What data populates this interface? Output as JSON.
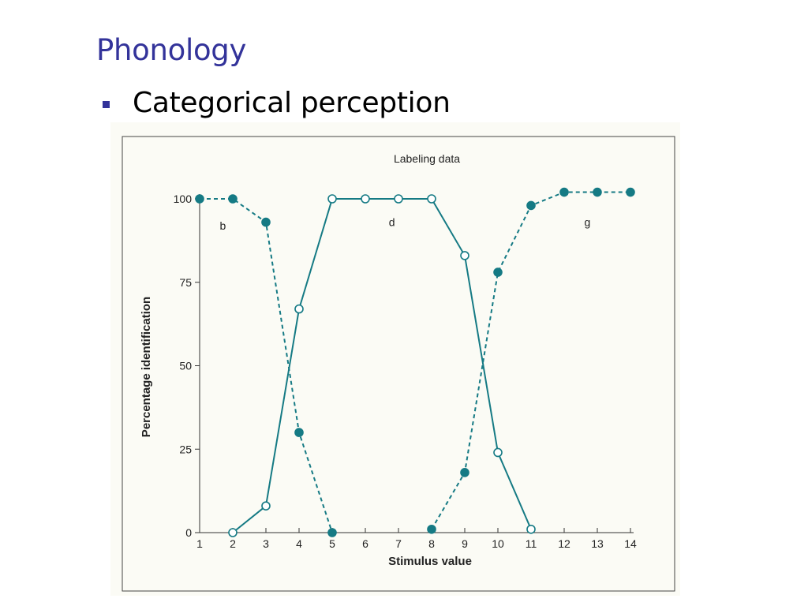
{
  "slide": {
    "title": "Phonology",
    "bullet": "Categorical perception"
  },
  "colors": {
    "accent": "#33339a",
    "series": "#157a84"
  },
  "chart_data": {
    "type": "line",
    "title": "Labeling data",
    "xlabel": "Stimulus value",
    "ylabel": "Percentage identification",
    "xlim": [
      1,
      14
    ],
    "ylim": [
      0,
      100
    ],
    "x_ticks": [
      1,
      2,
      3,
      4,
      5,
      6,
      7,
      8,
      9,
      10,
      11,
      12,
      13,
      14
    ],
    "y_ticks": [
      0,
      25,
      50,
      75,
      100
    ],
    "region_labels": [
      {
        "text": "b",
        "x": 1.7,
        "y": 92
      },
      {
        "text": "d",
        "x": 6.8,
        "y": 93
      },
      {
        "text": "g",
        "x": 12.7,
        "y": 93
      }
    ],
    "series": [
      {
        "style": "dashed",
        "marker": "filled",
        "points": [
          [
            1,
            100
          ],
          [
            2,
            100
          ],
          [
            3,
            93
          ],
          [
            4,
            30
          ],
          [
            5,
            0
          ]
        ]
      },
      {
        "style": "solid",
        "marker": "open",
        "points": [
          [
            2,
            0
          ],
          [
            3,
            8
          ],
          [
            4,
            67
          ],
          [
            5,
            100
          ],
          [
            6,
            100
          ],
          [
            7,
            100
          ],
          [
            8,
            100
          ],
          [
            9,
            83
          ],
          [
            10,
            24
          ],
          [
            11,
            1
          ]
        ]
      },
      {
        "style": "dashed",
        "marker": "filled",
        "points": [
          [
            8,
            1
          ],
          [
            9,
            18
          ],
          [
            10,
            78
          ],
          [
            11,
            98
          ],
          [
            12,
            102
          ],
          [
            13,
            102
          ],
          [
            14,
            102
          ]
        ]
      }
    ]
  }
}
